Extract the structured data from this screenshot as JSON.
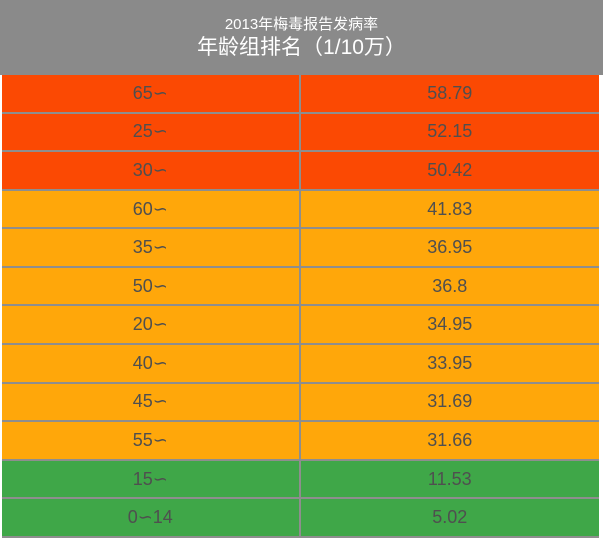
{
  "header": {
    "title": "2013年梅毒报告发病率",
    "subtitle": "年龄组排名（1/10万）"
  },
  "colors": {
    "header_bg": "#8a8a8a",
    "header_text": "#ffffff",
    "row_text": "#4f4f4f",
    "separator": "#8e8e8e",
    "red": "#fb4903",
    "orange": "#ffa70a",
    "green": "#3fa748"
  },
  "table": {
    "rows": [
      {
        "age_group": "65∽",
        "rate": "58.79",
        "level": "red"
      },
      {
        "age_group": "25∽",
        "rate": "52.15",
        "level": "red"
      },
      {
        "age_group": "30∽",
        "rate": "50.42",
        "level": "red"
      },
      {
        "age_group": "60∽",
        "rate": "41.83",
        "level": "orange"
      },
      {
        "age_group": "35∽",
        "rate": "36.95",
        "level": "orange"
      },
      {
        "age_group": "50∽",
        "rate": "36.8",
        "level": "orange"
      },
      {
        "age_group": "20∽",
        "rate": "34.95",
        "level": "orange"
      },
      {
        "age_group": "40∽",
        "rate": "33.95",
        "level": "orange"
      },
      {
        "age_group": "45∽",
        "rate": "31.69",
        "level": "orange"
      },
      {
        "age_group": "55∽",
        "rate": "31.66",
        "level": "orange"
      },
      {
        "age_group": "15∽",
        "rate": "11.53",
        "level": "green"
      },
      {
        "age_group": "0∽14",
        "rate": "5.02",
        "level": "green"
      }
    ]
  },
  "chart_data": {
    "type": "table",
    "title": "2013年梅毒报告发病率",
    "subtitle": "年龄组排名（1/10万）",
    "unit": "1/10万",
    "categories": [
      "65∽",
      "25∽",
      "30∽",
      "60∽",
      "35∽",
      "50∽",
      "20∽",
      "40∽",
      "45∽",
      "55∽",
      "15∽",
      "0∽14"
    ],
    "values": [
      58.79,
      52.15,
      50.42,
      41.83,
      36.95,
      36.8,
      34.95,
      33.95,
      31.69,
      31.66,
      11.53,
      5.02
    ],
    "color_coding": {
      "red": "top ranks 1-3",
      "orange": "ranks 4-10",
      "green": "ranks 11-12"
    },
    "legend_position": "none",
    "grid": true
  }
}
